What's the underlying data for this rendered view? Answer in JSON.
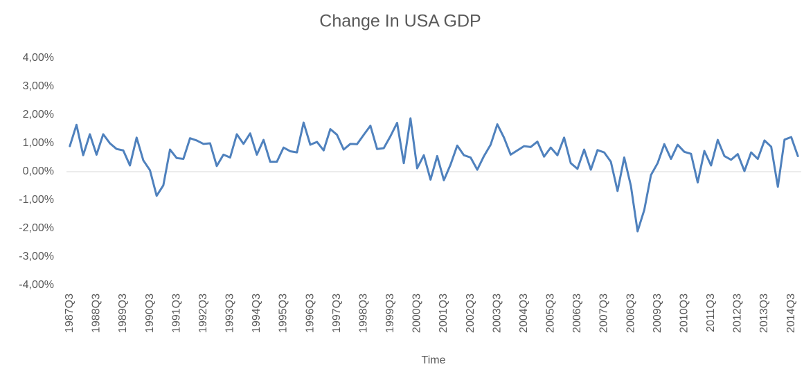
{
  "chart_data": {
    "type": "line",
    "title": "Change In USA GDP",
    "x_label": "Time",
    "categories": [
      "1987Q3",
      null,
      null,
      null,
      "1988Q3",
      null,
      null,
      null,
      "1989Q3",
      null,
      null,
      null,
      "1990Q3",
      null,
      null,
      null,
      "1991Q3",
      null,
      null,
      null,
      "1992Q3",
      null,
      null,
      null,
      "1993Q3",
      null,
      null,
      null,
      "1994Q3",
      null,
      null,
      null,
      "1995Q3",
      null,
      null,
      null,
      "1996Q3",
      null,
      null,
      null,
      "1997Q3",
      null,
      null,
      null,
      "1998Q3",
      null,
      null,
      null,
      "1999Q3",
      null,
      null,
      null,
      "2000Q3",
      null,
      null,
      null,
      "2001Q3",
      null,
      null,
      null,
      "2002Q3",
      null,
      null,
      null,
      "2003Q3",
      null,
      null,
      null,
      "2004Q3",
      null,
      null,
      null,
      "2005Q3",
      null,
      null,
      null,
      "2006Q3",
      null,
      null,
      null,
      "2007Q3",
      null,
      null,
      null,
      "2008Q3",
      null,
      null,
      null,
      "2009Q3",
      null,
      null,
      null,
      "2010Q3",
      null,
      null,
      null,
      "2011Q3",
      null,
      null,
      null,
      "2012Q3",
      null,
      null,
      null,
      "2013Q3",
      null,
      null,
      null,
      "2014Q3",
      null
    ],
    "series": [
      {
        "name": "Change In USA GDP",
        "color": "#4f81bd",
        "values": [
          0.9,
          1.65,
          0.58,
          1.32,
          0.6,
          1.32,
          1.0,
          0.8,
          0.75,
          0.22,
          1.2,
          0.4,
          0.05,
          -0.85,
          -0.48,
          0.78,
          0.48,
          0.45,
          1.18,
          1.1,
          0.98,
          1.0,
          0.2,
          0.6,
          0.5,
          1.32,
          0.98,
          1.35,
          0.6,
          1.12,
          0.35,
          0.35,
          0.85,
          0.72,
          0.68,
          1.73,
          0.95,
          1.05,
          0.75,
          1.5,
          1.3,
          0.78,
          0.98,
          0.97,
          1.3,
          1.62,
          0.8,
          0.83,
          1.25,
          1.72,
          0.3,
          1.88,
          0.12,
          0.58,
          -0.28,
          0.55,
          -0.3,
          0.25,
          0.92,
          0.58,
          0.5,
          0.07,
          0.55,
          0.95,
          1.67,
          1.2,
          0.6,
          0.75,
          0.9,
          0.87,
          1.06,
          0.53,
          0.85,
          0.58,
          1.2,
          0.3,
          0.1,
          0.78,
          0.07,
          0.76,
          0.68,
          0.35,
          -0.68,
          0.5,
          -0.5,
          -2.1,
          -1.35,
          -0.12,
          0.3,
          0.97,
          0.45,
          0.95,
          0.7,
          0.63,
          -0.38,
          0.73,
          0.22,
          1.12,
          0.55,
          0.42,
          0.62,
          0.02,
          0.68,
          0.45,
          1.1,
          0.88,
          -0.53,
          1.13,
          1.22,
          0.55
        ]
      }
    ],
    "ylim": [
      -4,
      4
    ],
    "yticks": [
      {
        "value": -4,
        "label": "-4,00%"
      },
      {
        "value": -3,
        "label": "-3,00%"
      },
      {
        "value": -2,
        "label": "-2,00%"
      },
      {
        "value": -1,
        "label": "-1,00%"
      },
      {
        "value": 0,
        "label": "0,00%"
      },
      {
        "value": 1,
        "label": "1,00%"
      },
      {
        "value": 2,
        "label": "2,00%"
      },
      {
        "value": 3,
        "label": "3,00%"
      },
      {
        "value": 4,
        "label": "4,00%"
      }
    ],
    "grid": false
  }
}
